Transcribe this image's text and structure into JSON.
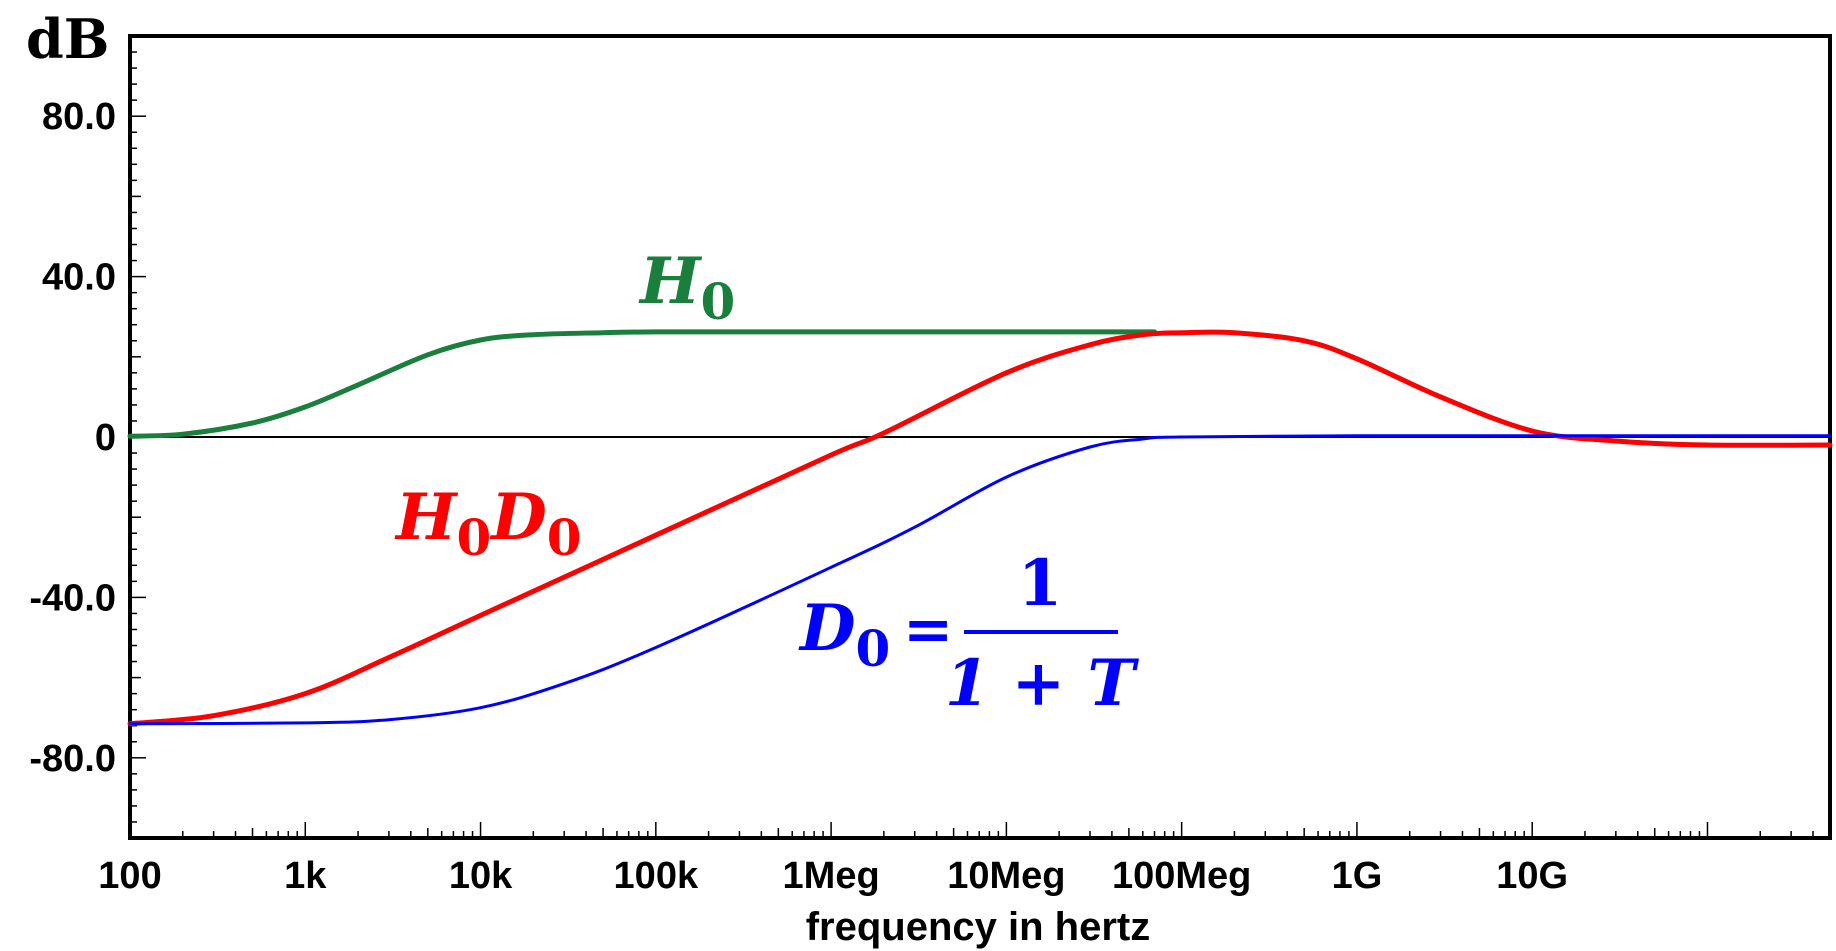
{
  "chart_data": {
    "type": "line",
    "title": "",
    "xlabel": "frequency in hertz",
    "ylabel": "dB",
    "xscale": "log",
    "xlim": [
      100,
      500000000000
    ],
    "ylim": [
      -100,
      100
    ],
    "x_ticks": [
      {
        "value": 100,
        "label": "100"
      },
      {
        "value": 1000,
        "label": "1k"
      },
      {
        "value": 10000,
        "label": "10k"
      },
      {
        "value": 100000,
        "label": "100k"
      },
      {
        "value": 1000000,
        "label": "1Meg"
      },
      {
        "value": 10000000,
        "label": "10Meg"
      },
      {
        "value": 100000000,
        "label": "100Meg"
      },
      {
        "value": 1000000000,
        "label": "1G"
      },
      {
        "value": 10000000000,
        "label": "10G"
      }
    ],
    "y_ticks": [
      {
        "value": 80,
        "label": "80.0"
      },
      {
        "value": 40,
        "label": "40.0"
      },
      {
        "value": 0,
        "label": "0"
      },
      {
        "value": -40,
        "label": "-40.0"
      },
      {
        "value": -80,
        "label": "-80.0"
      }
    ],
    "grid": false,
    "zero_line": true,
    "series": [
      {
        "label_main": "H",
        "label_sub": "0",
        "color": "#1a7f3c",
        "x": [
          100,
          200,
          500,
          1000,
          2000,
          5000,
          10000,
          20000,
          50000,
          100000,
          1000000,
          10000000,
          70000000
        ],
        "y": [
          0.2,
          0.7,
          3.5,
          7.5,
          13.0,
          20.5,
          24.2,
          25.5,
          26.0,
          26.2,
          26.2,
          26.2,
          26.2
        ]
      },
      {
        "label_main": "H",
        "label_sub": "0",
        "label_main2": "D",
        "label_sub2": "0",
        "color": "#ff0000",
        "x": [
          100,
          300,
          1000,
          3000,
          10000,
          100000,
          1000000,
          2000000,
          10000000,
          30000000,
          60000000,
          100000000,
          200000000,
          500000000,
          1000000000,
          3000000000,
          10000000000,
          30000000000,
          100000000000,
          500000000000
        ],
        "y": [
          -71.5,
          -69.5,
          -64.0,
          -55.0,
          -44.5,
          -24.5,
          -4.5,
          1.0,
          16.0,
          23.0,
          25.5,
          26.0,
          26.0,
          24.0,
          19.5,
          10.0,
          1.5,
          -1.0,
          -2.0,
          -2.0
        ]
      },
      {
        "label_main": "D",
        "label_sub": "0",
        "eq": "=",
        "frac_num": "1",
        "frac_den": "1 + T",
        "color": "#0000ff",
        "x": [
          100,
          1000,
          3000,
          10000,
          30000,
          100000,
          1000000,
          3000000,
          10000000,
          30000000,
          60000000,
          100000000,
          1000000000,
          10000000000,
          100000000000,
          500000000000
        ],
        "y": [
          -71.5,
          -71.3,
          -70.5,
          -67.5,
          -61.5,
          -52.5,
          -32.5,
          -22.5,
          -10.0,
          -2.5,
          -0.5,
          0.0,
          0.3,
          0.3,
          0.3,
          0.3
        ]
      }
    ]
  }
}
